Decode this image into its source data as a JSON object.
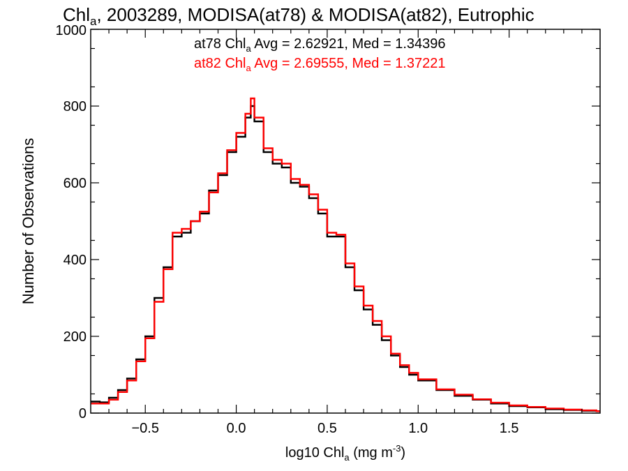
{
  "chart_data": {
    "type": "line",
    "title_main": "Chl",
    "title_sub": "a",
    "title_rest": ", 2003289, MODISA(at78) & MODISA(at82), Eutrophic",
    "xlabel_main": "log10 Chl",
    "xlabel_sub": "a",
    "xlabel_unit": " (mg m",
    "xlabel_sup": "-3",
    "xlabel_close": ")",
    "ylabel": "Number of Observations",
    "xlim": [
      -0.8,
      2.0
    ],
    "ylim": [
      0,
      1000
    ],
    "xticks": [
      -0.5,
      0.0,
      0.5,
      1.0,
      1.5
    ],
    "xtick_labels": [
      "−0.5",
      "0.0",
      "0.5",
      "1.0",
      "1.5"
    ],
    "yticks": [
      0,
      200,
      400,
      600,
      800,
      1000
    ],
    "ytick_labels": [
      "0",
      "200",
      "400",
      "600",
      "800",
      "1000"
    ],
    "grid": false,
    "series": [
      {
        "name": "at78",
        "color": "#000000",
        "annotation": {
          "pre": "at78 Chl",
          "sub": "a",
          "post": " Avg = 2.62921, Med = 1.34396"
        },
        "x": [
          -0.8,
          -0.75,
          -0.7,
          -0.65,
          -0.6,
          -0.55,
          -0.5,
          -0.45,
          -0.4,
          -0.35,
          -0.3,
          -0.25,
          -0.2,
          -0.15,
          -0.1,
          -0.05,
          0.0,
          0.05,
          0.08,
          0.1,
          0.15,
          0.2,
          0.25,
          0.3,
          0.35,
          0.4,
          0.45,
          0.5,
          0.55,
          0.6,
          0.65,
          0.7,
          0.75,
          0.8,
          0.85,
          0.9,
          0.95,
          1.0,
          1.1,
          1.2,
          1.3,
          1.4,
          1.5,
          1.6,
          1.7,
          1.8,
          1.9,
          1.98
        ],
        "y": [
          30,
          28,
          40,
          60,
          90,
          140,
          200,
          300,
          380,
          460,
          470,
          500,
          520,
          580,
          620,
          680,
          720,
          770,
          800,
          760,
          680,
          650,
          640,
          600,
          590,
          560,
          520,
          460,
          460,
          380,
          320,
          270,
          230,
          190,
          150,
          120,
          100,
          85,
          60,
          45,
          35,
          25,
          18,
          15,
          10,
          8,
          6,
          5
        ]
      },
      {
        "name": "at82",
        "color": "#ff0000",
        "annotation": {
          "pre": "at82 Chl",
          "sub": "a",
          "post": " Avg = 2.69555, Med = 1.37221"
        },
        "x": [
          -0.8,
          -0.75,
          -0.7,
          -0.65,
          -0.6,
          -0.55,
          -0.5,
          -0.45,
          -0.4,
          -0.35,
          -0.3,
          -0.25,
          -0.2,
          -0.15,
          -0.1,
          -0.05,
          0.0,
          0.05,
          0.08,
          0.1,
          0.15,
          0.2,
          0.25,
          0.3,
          0.35,
          0.4,
          0.45,
          0.5,
          0.55,
          0.6,
          0.65,
          0.7,
          0.75,
          0.8,
          0.85,
          0.9,
          0.95,
          1.0,
          1.1,
          1.2,
          1.3,
          1.4,
          1.5,
          1.6,
          1.7,
          1.8,
          1.9,
          1.98
        ],
        "y": [
          25,
          25,
          35,
          55,
          85,
          135,
          195,
          290,
          375,
          470,
          480,
          500,
          525,
          575,
          625,
          685,
          730,
          780,
          820,
          770,
          690,
          660,
          650,
          610,
          595,
          570,
          530,
          470,
          465,
          390,
          330,
          280,
          240,
          200,
          155,
          125,
          105,
          88,
          62,
          48,
          36,
          27,
          20,
          16,
          12,
          9,
          7,
          5
        ]
      }
    ]
  }
}
